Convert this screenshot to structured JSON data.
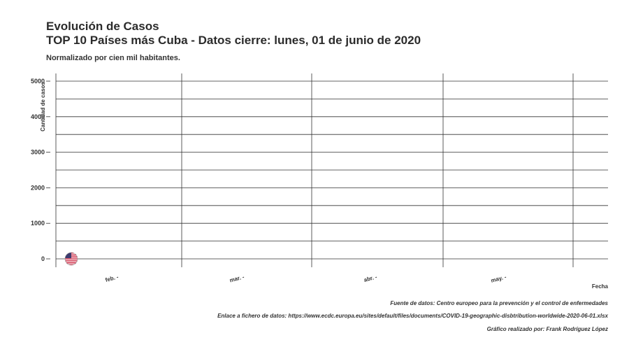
{
  "chart_data": {
    "type": "scatter",
    "title": "Evolución de Casos",
    "subtitle": "TOP 10 Países más Cuba - Datos cierre: lunes, 01 de junio de 2020",
    "note": "Normalizado por cien mil habitantes.",
    "xlabel": "Fecha",
    "ylabel": "Cantidad de casos",
    "x_ticks": [
      "feb.",
      "mar.",
      "abr.",
      "may."
    ],
    "y_ticks": [
      0,
      1000,
      2000,
      3000,
      4000,
      5000
    ],
    "ylim": [
      -200,
      5150
    ],
    "grid": true,
    "series": [
      {
        "x": "2020-01-22",
        "y": 0,
        "marker": "us-flag-icon"
      }
    ]
  },
  "captions": {
    "source": "Fuente de datos: Centro europeo para la prevención y el control de enfermedades",
    "link": "Enlace a fichero de datos: https://www.ecdc.europa.eu/sites/default/files/documents/COVID-19-geographic-disbtribution-worldwide-2020-06-01.xlsx",
    "author": "Gráfico realizado por: Frank Rodríguez López"
  },
  "colors": {
    "grid": "#333333",
    "flag_red": "#c8102e",
    "flag_blue": "#3c3b6e"
  }
}
